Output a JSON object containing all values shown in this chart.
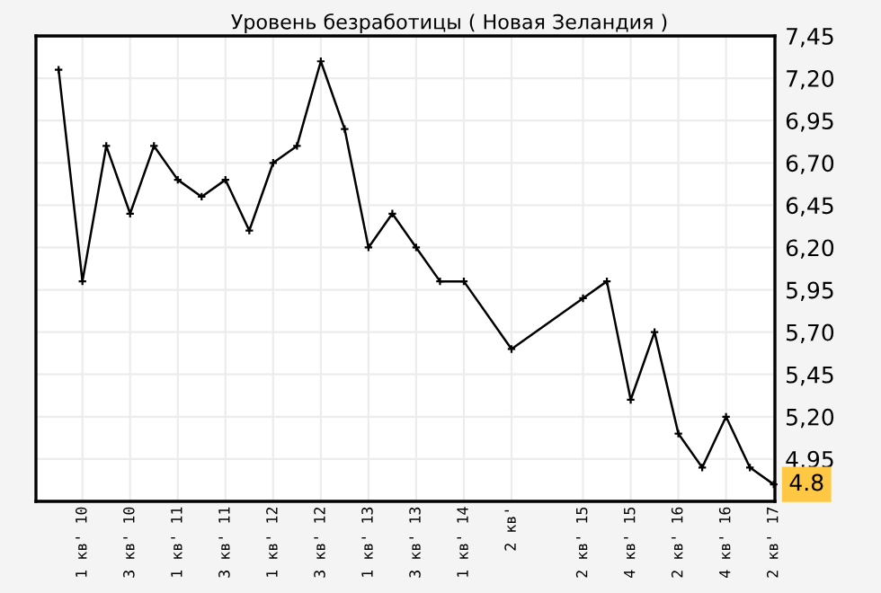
{
  "chart_data": {
    "type": "line",
    "title": "Уровень безработицы ( Новая Зеландия )",
    "categories": [
      null,
      "1 кв' 10",
      null,
      "3 кв' 10",
      null,
      "1 кв' 11",
      null,
      "3 кв' 11",
      null,
      "1 кв' 12",
      null,
      "3 кв' 12",
      null,
      "1 кв' 13",
      null,
      "3 кв' 13",
      null,
      "1 кв' 14",
      null,
      "2 кв'",
      null,
      null,
      "2 кв' 15",
      null,
      "4 кв' 15",
      null,
      "2 кв' 16",
      null,
      "4 кв' 16",
      null,
      "2 кв' 17"
    ],
    "series": [
      {
        "color": "#000000",
        "values": [
          7.25,
          6.0,
          6.8,
          6.4,
          6.8,
          6.6,
          6.5,
          6.6,
          6.3,
          6.7,
          6.8,
          7.3,
          6.9,
          6.2,
          6.4,
          6.2,
          6.0,
          6.0,
          null,
          5.6,
          null,
          null,
          5.9,
          6.0,
          5.3,
          5.7,
          5.1,
          4.9,
          5.2,
          4.9,
          4.8
        ]
      }
    ],
    "ylim": [
      4.7,
      7.45
    ],
    "yticks": [
      {
        "value": 4.95,
        "label": "4,95"
      },
      {
        "value": 5.2,
        "label": "5,20"
      },
      {
        "value": 5.45,
        "label": "5,45"
      },
      {
        "value": 5.7,
        "label": "5,70"
      },
      {
        "value": 5.95,
        "label": "5,95"
      },
      {
        "value": 6.2,
        "label": "6,20"
      },
      {
        "value": 6.45,
        "label": "6,45"
      },
      {
        "value": 6.7,
        "label": "6,70"
      },
      {
        "value": 6.95,
        "label": "6,95"
      },
      {
        "value": 7.2,
        "label": "7,20"
      },
      {
        "value": 7.45,
        "label": "7,45"
      }
    ],
    "annotations": [
      {
        "text": "4.8",
        "x": "2 кв' 17",
        "y": 4.8
      }
    ],
    "grid": true,
    "marker": "cross",
    "line_style": "solid"
  }
}
